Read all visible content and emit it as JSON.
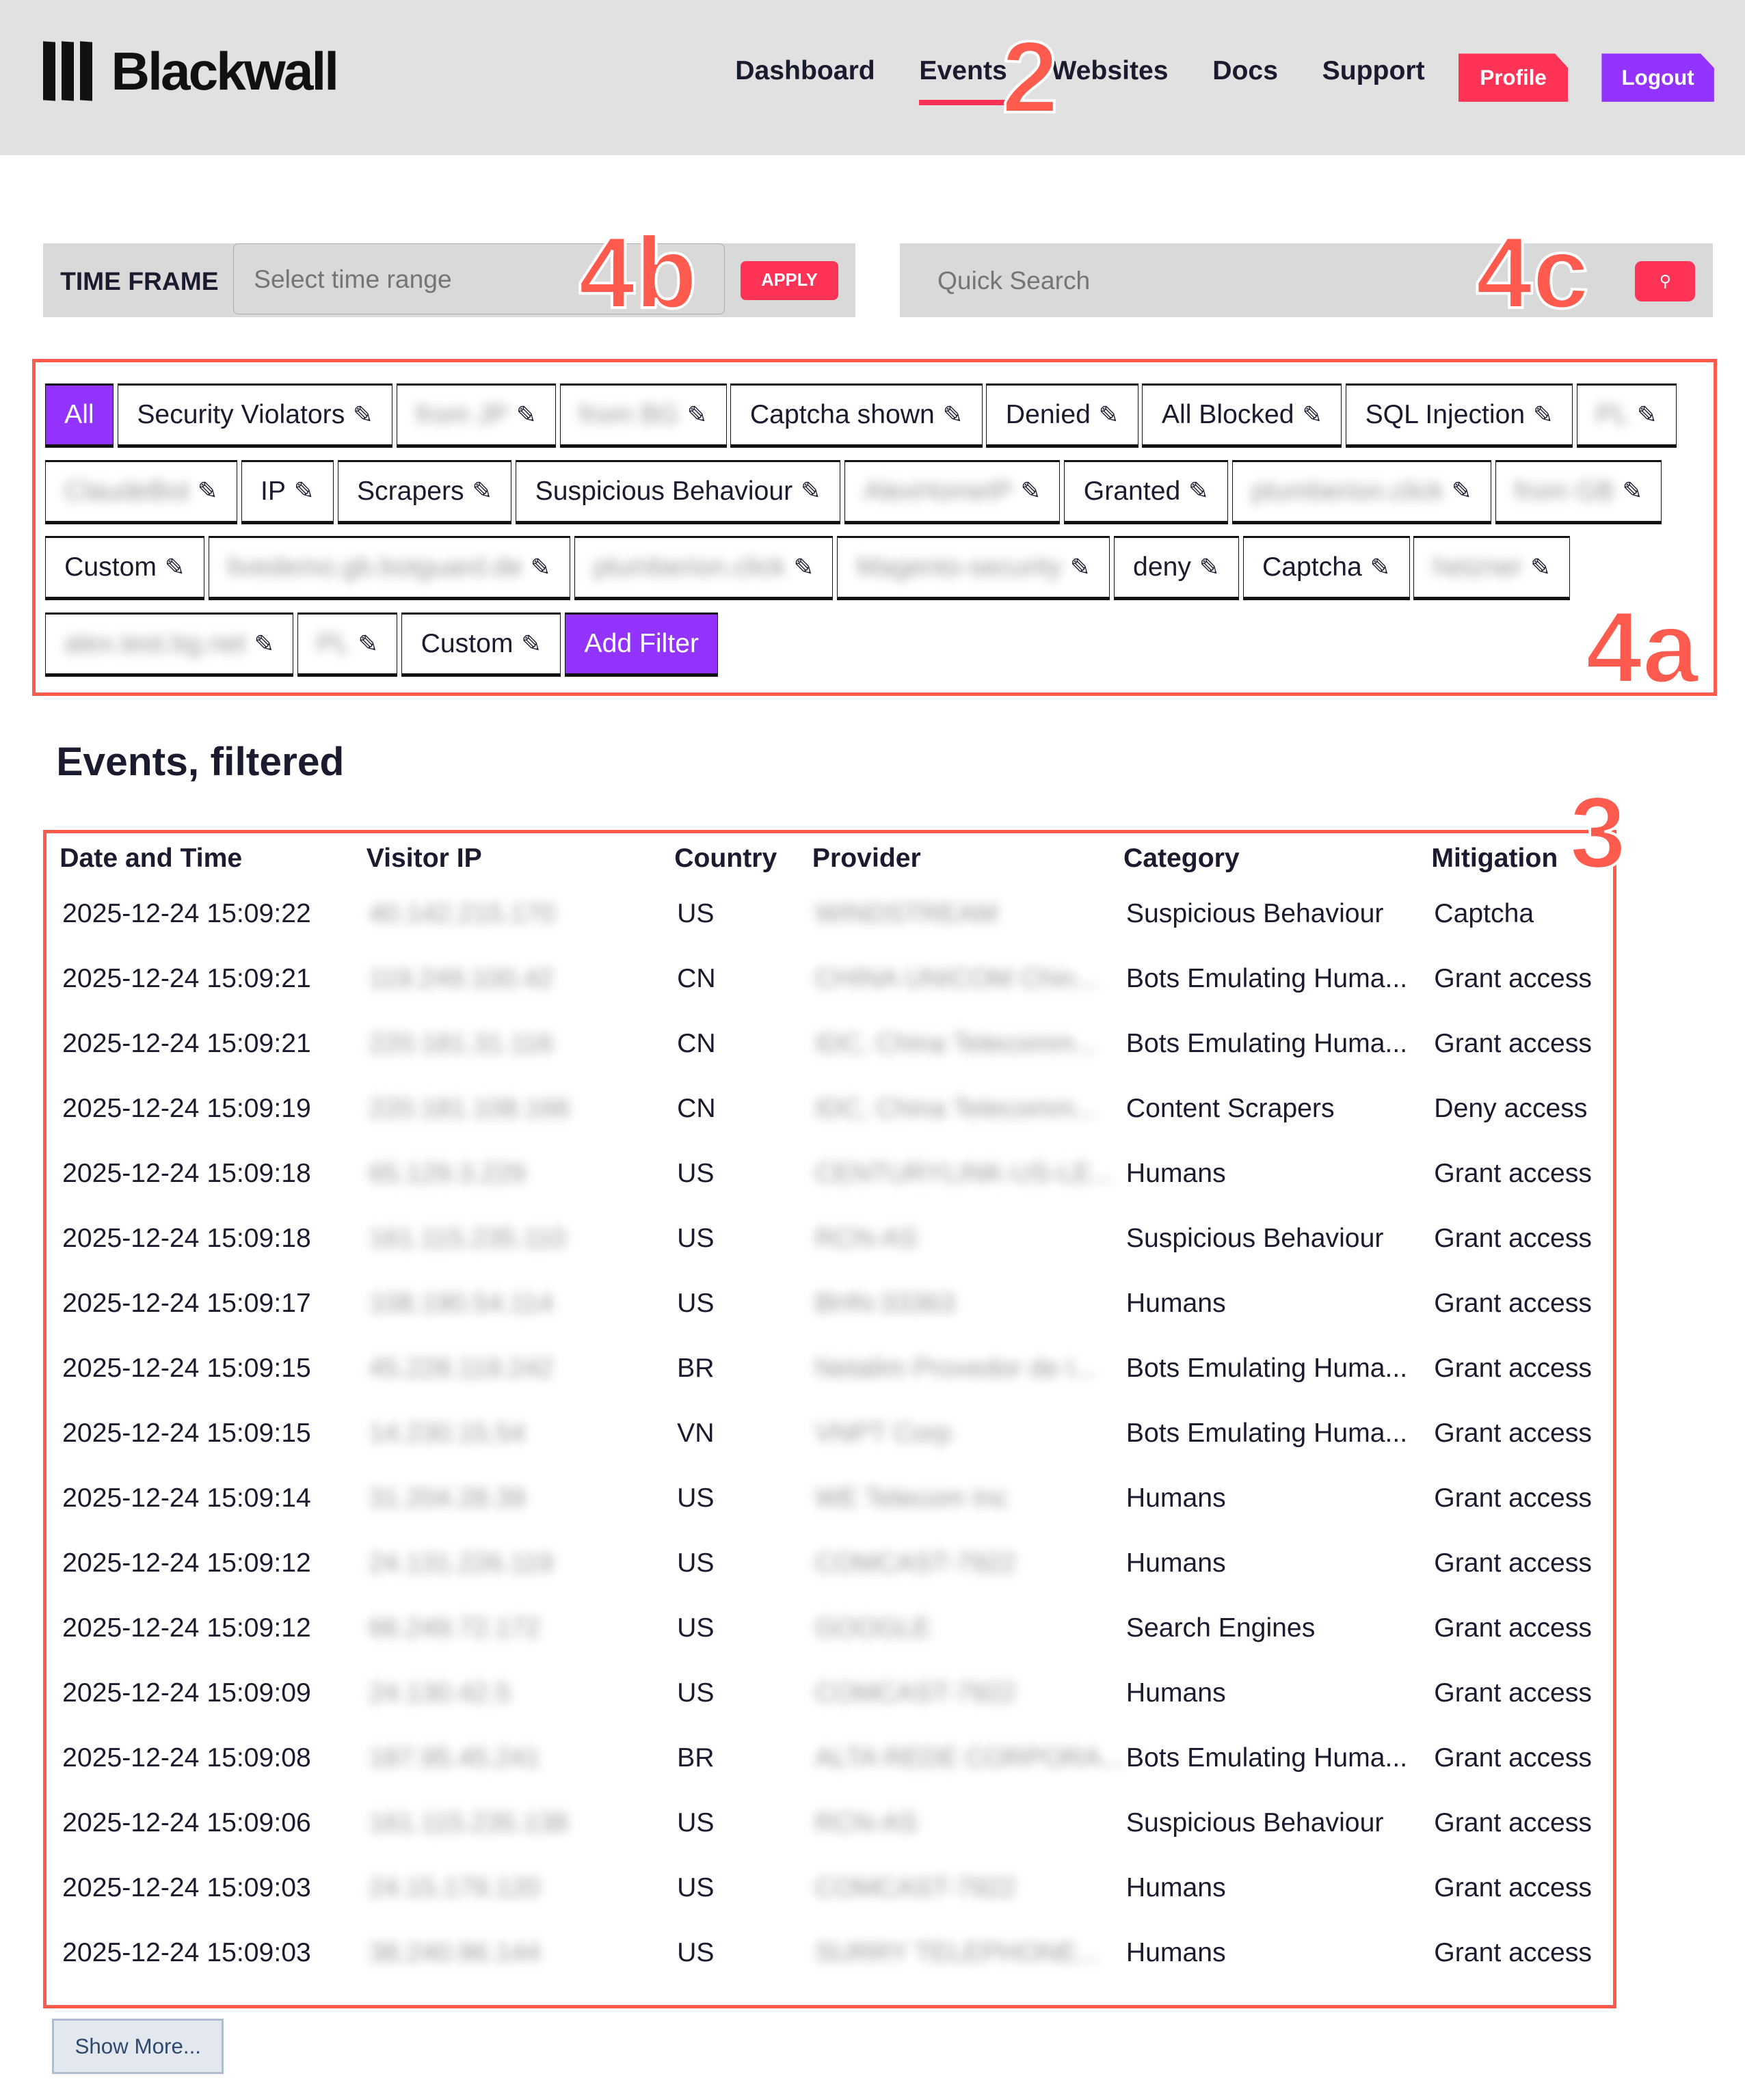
{
  "header": {
    "brand": "Blackwall",
    "nav": [
      "Dashboard",
      "Events",
      "Websites",
      "Docs",
      "Support"
    ],
    "active": "Events",
    "profile": "Profile",
    "logout": "Logout",
    "accent": "#ff3355",
    "purple": "#9333ff"
  },
  "timeframe": {
    "label": "TIME FRAME",
    "placeholder": "Select time range",
    "apply": "APPLY"
  },
  "search": {
    "placeholder": "Quick Search",
    "icon": "search-icon"
  },
  "filters": {
    "rows": [
      [
        {
          "label": "All",
          "type": "all"
        },
        {
          "label": "Security Violators"
        },
        {
          "label": "from JP",
          "blur": true
        },
        {
          "label": "from BG",
          "blur": true
        },
        {
          "label": "Captcha shown"
        },
        {
          "label": "Denied"
        },
        {
          "label": "All Blocked"
        },
        {
          "label": "SQL Injection"
        },
        {
          "label": "PL",
          "blur": true
        }
      ],
      [
        {
          "label": "ClaudeBot",
          "blur": true
        },
        {
          "label": "IP"
        },
        {
          "label": "Scrapers"
        },
        {
          "label": "Suspicious Behaviour"
        },
        {
          "label": "AlexHomeIP",
          "blur": true
        },
        {
          "label": "Granted"
        },
        {
          "label": "plumberion.click",
          "blur": true
        },
        {
          "label": "from GB",
          "blur": true
        }
      ],
      [
        {
          "label": "Custom"
        },
        {
          "label": "livedemo.gb.botguard.de",
          "blur": true
        },
        {
          "label": "plumberion.click",
          "blur": true
        },
        {
          "label": "Magento-security",
          "blur": true
        },
        {
          "label": "deny"
        },
        {
          "label": "Captcha"
        },
        {
          "label": "hetzner",
          "blur": true
        }
      ],
      [
        {
          "label": "alex.test.bg.net",
          "blur": true
        },
        {
          "label": "PL",
          "blur": true
        },
        {
          "label": "Custom"
        },
        {
          "label": "Add Filter",
          "type": "add"
        }
      ]
    ]
  },
  "events": {
    "title": "Events, filtered",
    "columns": [
      "Date and Time",
      "Visitor IP",
      "Country",
      "Provider",
      "Category",
      "Mitigation"
    ],
    "rows": [
      [
        "2025-12-24 15:09:22",
        "40.142.215.170",
        "US",
        "WINDSTREAM",
        "Suspicious Behaviour",
        "Captcha"
      ],
      [
        "2025-12-24 15:09:21",
        "119.249.100.42",
        "CN",
        "CHINA UNICOM Chin...",
        "Bots Emulating Huma...",
        "Grant access"
      ],
      [
        "2025-12-24 15:09:21",
        "220.181.31.116",
        "CN",
        "IDC, China Telecomm...",
        "Bots Emulating Huma...",
        "Grant access"
      ],
      [
        "2025-12-24 15:09:19",
        "220.181.108.166",
        "CN",
        "IDC, China Telecomm...",
        "Content Scrapers",
        "Deny access"
      ],
      [
        "2025-12-24 15:09:18",
        "65.129.3.229",
        "US",
        "CENTURYLINK-US-LE...",
        "Humans",
        "Grant access"
      ],
      [
        "2025-12-24 15:09:18",
        "161.115.235.110",
        "US",
        "RCN-AS",
        "Suspicious Behaviour",
        "Grant access"
      ],
      [
        "2025-12-24 15:09:17",
        "108.190.54.114",
        "US",
        "BHN-33363",
        "Humans",
        "Grant access"
      ],
      [
        "2025-12-24 15:09:15",
        "45.228.119.242",
        "BR",
        "Netalim Provedor de I...",
        "Bots Emulating Huma...",
        "Grant access"
      ],
      [
        "2025-12-24 15:09:15",
        "14.230.15.54",
        "VN",
        "VNPT Corp",
        "Bots Emulating Huma...",
        "Grant access"
      ],
      [
        "2025-12-24 15:09:14",
        "31.204.28.39",
        "US",
        "WE Telecom Inc",
        "Humans",
        "Grant access"
      ],
      [
        "2025-12-24 15:09:12",
        "24.131.226.119",
        "US",
        "COMCAST-7922",
        "Humans",
        "Grant access"
      ],
      [
        "2025-12-24 15:09:12",
        "66.249.72.172",
        "US",
        "GOOGLE",
        "Search Engines",
        "Grant access"
      ],
      [
        "2025-12-24 15:09:09",
        "24.130.42.5",
        "US",
        "COMCAST-7922",
        "Humans",
        "Grant access"
      ],
      [
        "2025-12-24 15:09:08",
        "187.95.45.241",
        "BR",
        "ALTA REDE CORPORA...",
        "Bots Emulating Huma...",
        "Grant access"
      ],
      [
        "2025-12-24 15:09:06",
        "161.115.235.138",
        "US",
        "RCN-AS",
        "Suspicious Behaviour",
        "Grant access"
      ],
      [
        "2025-12-24 15:09:03",
        "24.15.179.120",
        "US",
        "COMCAST-7922",
        "Humans",
        "Grant access"
      ],
      [
        "2025-12-24 15:09:03",
        "38.240.96.144",
        "US",
        "SURRY TELEPHONE...",
        "Humans",
        "Grant access"
      ]
    ],
    "show_more": "Show More..."
  },
  "annotations": {
    "nav": "2",
    "table": "3",
    "filters": "4a",
    "timeframe": "4b",
    "search": "4c",
    "color": "#ff5a4e"
  }
}
